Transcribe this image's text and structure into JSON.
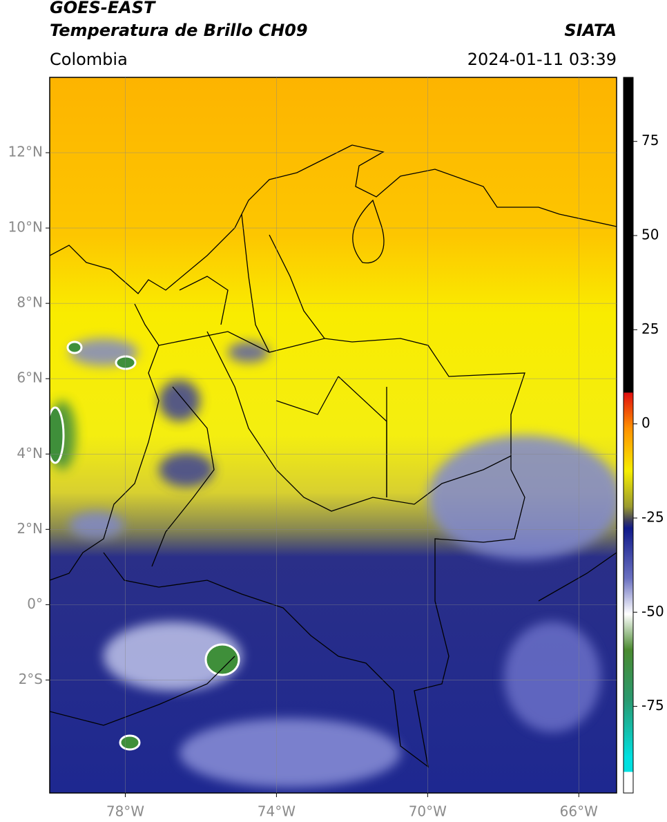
{
  "header": {
    "title": "GOES-EAST",
    "subtitle": "Temperatura de Brillo CH09",
    "source": "SIATA",
    "region": "Colombia",
    "datetime": "2024-01-11 03:39"
  },
  "map": {
    "xlim": [
      -80,
      -65
    ],
    "ylim": [
      -5,
      14
    ],
    "xticks": [
      {
        "value": -78,
        "label": "78°W"
      },
      {
        "value": -74,
        "label": "74°W"
      },
      {
        "value": -70,
        "label": "70°W"
      },
      {
        "value": -66,
        "label": "66°W"
      }
    ],
    "yticks": [
      {
        "value": -2,
        "label": "2°S"
      },
      {
        "value": 0,
        "label": "0°"
      },
      {
        "value": 2,
        "label": "2°N"
      },
      {
        "value": 4,
        "label": "4°N"
      },
      {
        "value": 6,
        "label": "6°N"
      },
      {
        "value": 8,
        "label": "8°N"
      },
      {
        "value": 10,
        "label": "10°N"
      },
      {
        "value": 12,
        "label": "12°N"
      }
    ]
  },
  "colorbar": {
    "lim": [
      -98,
      92
    ],
    "ticks": [
      -75,
      -50,
      -25,
      0,
      25,
      50,
      75
    ]
  }
}
